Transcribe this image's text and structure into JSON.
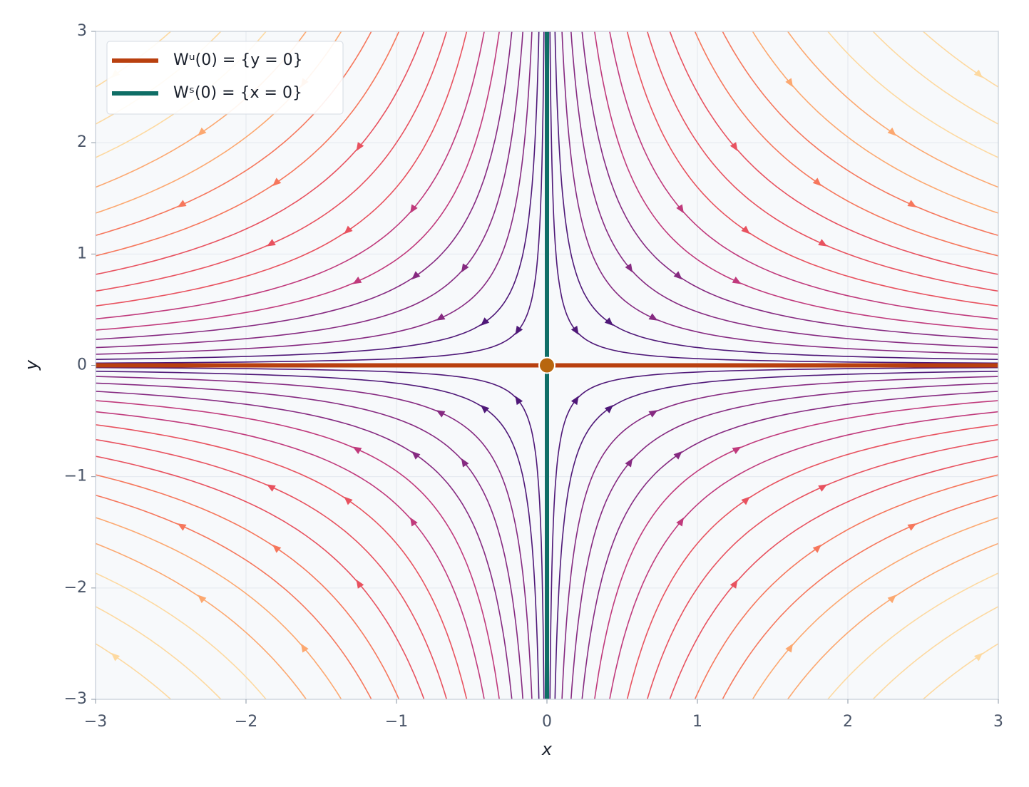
{
  "chart_data": {
    "type": "streamplot",
    "xlabel": "x",
    "ylabel": "y",
    "xlim": [
      -3,
      3
    ],
    "ylim": [
      -3,
      3
    ],
    "xticks": [
      {
        "value": -3,
        "label": "−3"
      },
      {
        "value": -2,
        "label": "−2"
      },
      {
        "value": -1,
        "label": "−1"
      },
      0,
      1,
      2,
      3
    ],
    "yticks": [
      {
        "value": -3,
        "label": "−3"
      },
      {
        "value": -2,
        "label": "−2"
      },
      {
        "value": -1,
        "label": "−1"
      },
      0,
      1,
      2,
      3
    ],
    "grid": true,
    "legend": "upper left",
    "series": [
      {
        "name": "Wᵘ(0) = {y = 0}",
        "color": "#b9400f",
        "x": [
          -3,
          3
        ],
        "y": [
          0,
          0
        ]
      },
      {
        "name": "Wˢ(0) = {x = 0}",
        "color": "#0f6e66",
        "x": [
          0,
          0
        ],
        "y": [
          -3,
          3
        ]
      }
    ],
    "points": [
      {
        "x": 0,
        "y": 0,
        "color": "#b8660e"
      }
    ]
  }
}
